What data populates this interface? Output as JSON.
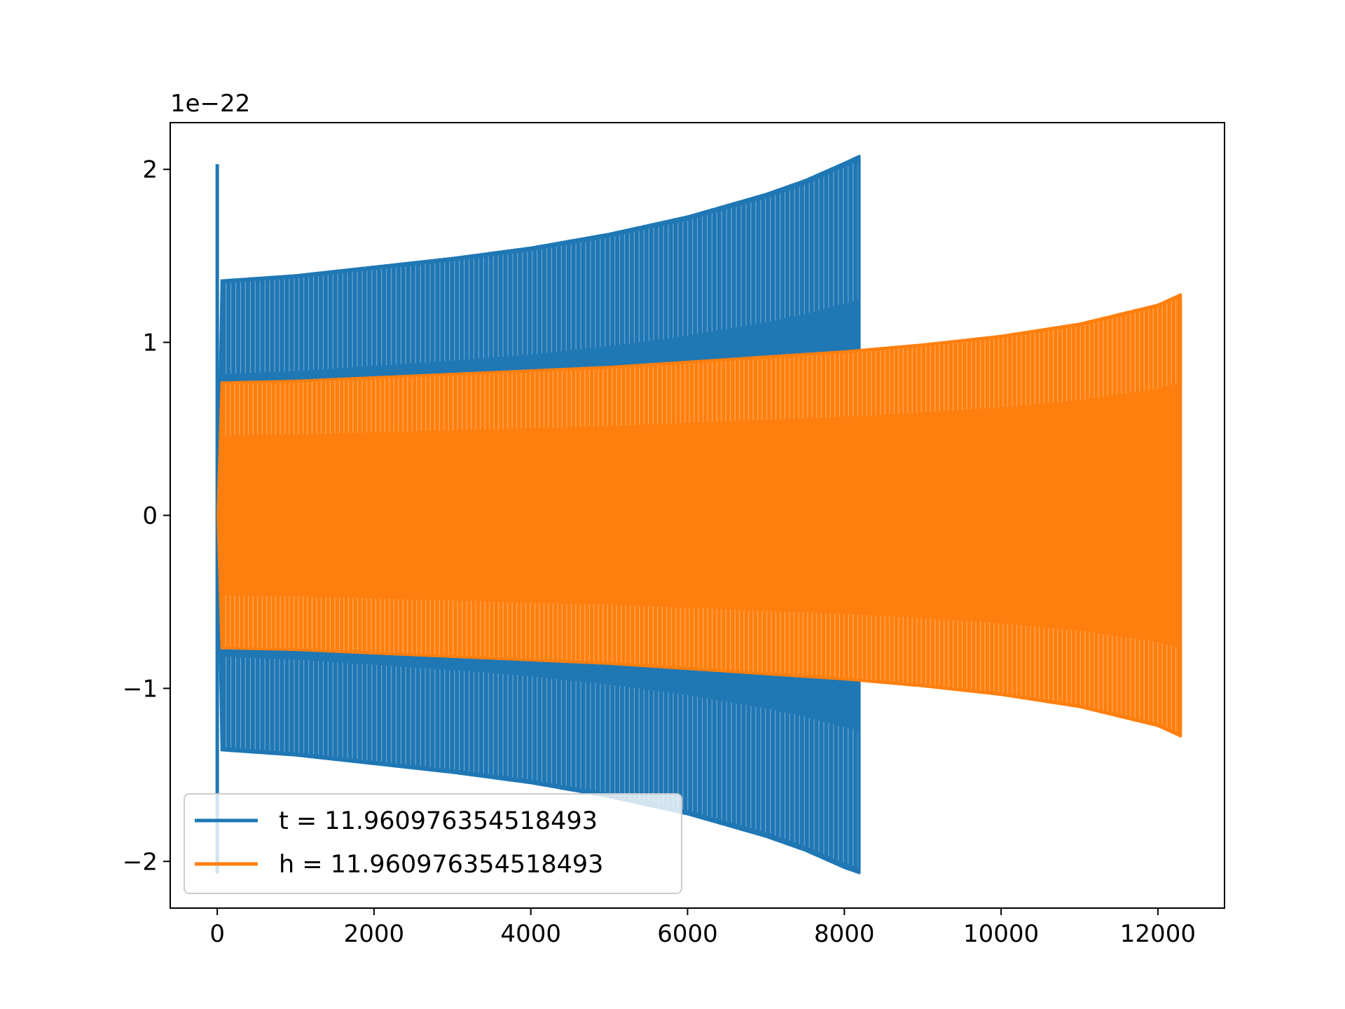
{
  "chart_data": {
    "type": "line",
    "title": "",
    "xlabel": "",
    "ylabel": "",
    "y_scale_label": "1e−22",
    "xlim": [
      -600,
      12850
    ],
    "ylim": [
      -2.27,
      2.27
    ],
    "y_scale_factor": 1e-22,
    "x_ticks": [
      0,
      2000,
      4000,
      6000,
      8000,
      10000,
      12000
    ],
    "x_tick_labels": [
      "0",
      "2000",
      "4000",
      "6000",
      "8000",
      "10000",
      "12000"
    ],
    "y_ticks": [
      -2,
      -1,
      0,
      1,
      2
    ],
    "y_tick_labels": [
      "−2",
      "−1",
      "0",
      "1",
      "2"
    ],
    "grid": false,
    "legend_position": "lower-left",
    "series": [
      {
        "name": "t = 11.960976354518493",
        "color": "#1f77b4",
        "x_range": [
          0,
          8190
        ],
        "initial_spike": [
          2.03,
          -2.07
        ],
        "envelope": {
          "x": [
            50,
            1000,
            2000,
            3000,
            4000,
            5000,
            6000,
            7000,
            7500,
            8000,
            8190
          ],
          "upper": [
            1.36,
            1.39,
            1.44,
            1.49,
            1.55,
            1.63,
            1.73,
            1.86,
            1.94,
            2.04,
            2.08
          ],
          "lower": [
            -1.36,
            -1.39,
            -1.44,
            -1.49,
            -1.55,
            -1.63,
            -1.73,
            -1.86,
            -1.94,
            -2.04,
            -2.07
          ]
        }
      },
      {
        "name": "h = 11.960976354518493",
        "color": "#ff7f0e",
        "x_range": [
          0,
          12290
        ],
        "envelope": {
          "x": [
            50,
            1000,
            2000,
            3000,
            4000,
            5000,
            6000,
            7000,
            8000,
            9000,
            10000,
            11000,
            12000,
            12290
          ],
          "upper": [
            0.77,
            0.78,
            0.8,
            0.82,
            0.84,
            0.86,
            0.89,
            0.92,
            0.95,
            0.99,
            1.04,
            1.11,
            1.22,
            1.28
          ],
          "lower": [
            -0.77,
            -0.78,
            -0.8,
            -0.82,
            -0.84,
            -0.86,
            -0.89,
            -0.92,
            -0.95,
            -0.99,
            -1.04,
            -1.11,
            -1.22,
            -1.28
          ]
        }
      }
    ]
  }
}
